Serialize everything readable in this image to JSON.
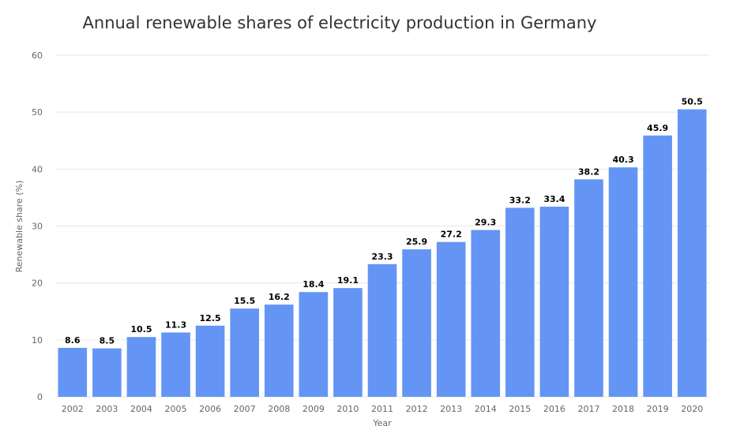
{
  "chart_data": {
    "type": "bar",
    "title": "Annual renewable shares of electricity production in Germany",
    "xlabel": "Year",
    "ylabel": "Renewable share (%)",
    "ylim": [
      0,
      60
    ],
    "yticks": [
      0,
      10,
      20,
      30,
      40,
      50,
      60
    ],
    "grid": true,
    "legend": "none",
    "bar_color": "#6495f5",
    "categories": [
      "2002",
      "2003",
      "2004",
      "2005",
      "2006",
      "2007",
      "2008",
      "2009",
      "2010",
      "2011",
      "2012",
      "2013",
      "2014",
      "2015",
      "2016",
      "2017",
      "2018",
      "2019",
      "2020"
    ],
    "values": [
      8.6,
      8.5,
      10.5,
      11.3,
      12.5,
      15.5,
      16.2,
      18.4,
      19.1,
      23.3,
      25.9,
      27.2,
      29.3,
      33.2,
      33.4,
      38.2,
      40.3,
      45.9,
      50.5
    ]
  }
}
